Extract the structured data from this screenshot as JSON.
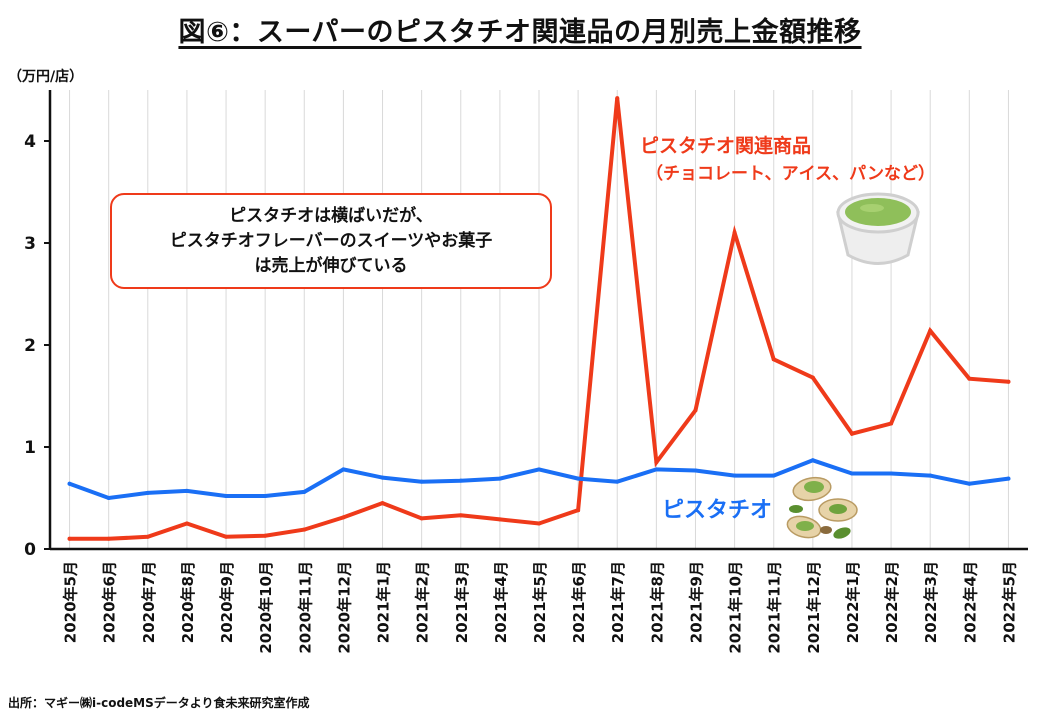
{
  "title": "図⑥：スーパーのピスタチオ関連品の月別売上金額推移",
  "unit_label": "（万円/店）",
  "source": "出所：マギー㈱i-codeMSデータより食未来研究室作成",
  "annotation": {
    "line1": "ピスタチオは横ばいだが、",
    "line2": "ピスタチオフレーバーのスイーツやお菓子",
    "line3": "は売上が伸びている"
  },
  "series_labels": {
    "red_main": "ピスタチオ関連商品",
    "red_sub": "（チョコレート、アイス、パンなど）",
    "blue": "ピスタチオ"
  },
  "chart_data": {
    "type": "line",
    "title": "図⑥：スーパーのピスタチオ関連品の月別売上金額推移",
    "ylabel": "（万円/店）",
    "xlabel": "",
    "ylim": [
      0,
      4.5
    ],
    "yticks": [
      0,
      1,
      2,
      3,
      4
    ],
    "grid": "vertical",
    "categories": [
      "2020年5月",
      "2020年6月",
      "2020年7月",
      "2020年8月",
      "2020年9月",
      "2020年10月",
      "2020年11月",
      "2020年12月",
      "2021年1月",
      "2021年2月",
      "2021年3月",
      "2021年4月",
      "2021年5月",
      "2021年6月",
      "2021年7月",
      "2021年8月",
      "2021年9月",
      "2021年10月",
      "2021年11月",
      "2021年12月",
      "2022年1月",
      "2022年2月",
      "2022年3月",
      "2022年4月",
      "2022年5月"
    ],
    "series": [
      {
        "name": "ピスタチオ関連商品（チョコレート、アイス、パンなど）",
        "color": "#ef3a1a",
        "values": [
          0.1,
          0.1,
          0.12,
          0.25,
          0.12,
          0.13,
          0.19,
          0.31,
          0.45,
          0.3,
          0.33,
          0.29,
          0.25,
          0.38,
          4.42,
          0.85,
          1.36,
          3.1,
          1.86,
          1.68,
          1.13,
          1.23,
          2.14,
          1.67,
          1.64
        ]
      },
      {
        "name": "ピスタチオ",
        "color": "#1a6ff5",
        "values": [
          0.64,
          0.5,
          0.55,
          0.57,
          0.52,
          0.52,
          0.56,
          0.78,
          0.7,
          0.66,
          0.67,
          0.69,
          0.78,
          0.69,
          0.66,
          0.78,
          0.77,
          0.72,
          0.72,
          0.87,
          0.74,
          0.74,
          0.72,
          0.64,
          0.69
        ]
      }
    ]
  }
}
